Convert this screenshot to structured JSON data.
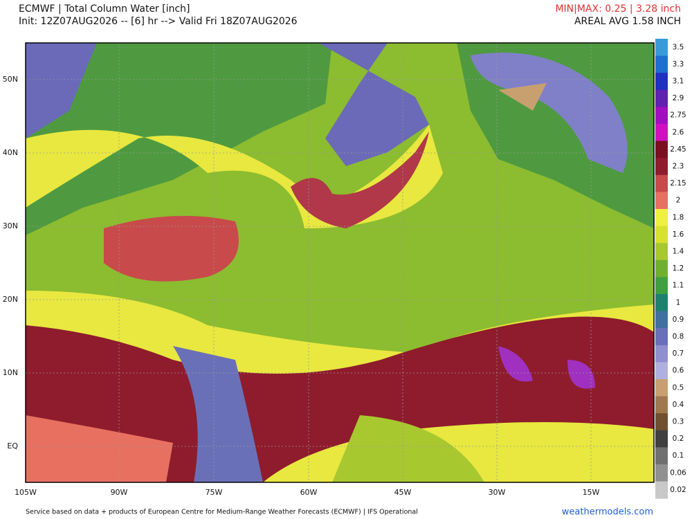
{
  "header": {
    "title": "ECMWF | Total Column Water [inch]",
    "init": "Init: 12Z07AUG2026 -- [6] hr --> Valid Fri 18Z07AUG2026",
    "minmax": "MIN|MAX: 0.25 | 3.28 inch",
    "areal_avg": "AREAL AVG 1.58 INCH"
  },
  "map": {
    "lat_labels": [
      "50N",
      "40N",
      "30N",
      "20N",
      "10N",
      "EQ"
    ],
    "lon_labels": [
      "105W",
      "90W",
      "75W",
      "60W",
      "45W",
      "30W",
      "15W"
    ]
  },
  "colorbar": {
    "labels": [
      "3.5",
      "3.3",
      "3.1",
      "2.9",
      "2.75",
      "2.6",
      "2.45",
      "2.3",
      "2.15",
      "2",
      "1.8",
      "1.6",
      "1.4",
      "1.2",
      "1.1",
      "1",
      "0.9",
      "0.8",
      "0.7",
      "0.6",
      "0.5",
      "0.4",
      "0.3",
      "0.2",
      "0.1",
      "0.06",
      "0.02"
    ],
    "colors": [
      "#3a9ad9",
      "#1f6fd0",
      "#2030c0",
      "#6020b0",
      "#a010c0",
      "#d010c0",
      "#7a0f20",
      "#8e1c2c",
      "#c84a4a",
      "#e87060",
      "#f0f040",
      "#d8e030",
      "#a8c830",
      "#70b030",
      "#40a040",
      "#208070",
      "#4070a0",
      "#6a70b8",
      "#9090d0",
      "#b0b0e0",
      "#c8a070",
      "#a07850",
      "#705030",
      "#404040",
      "#707070",
      "#909090",
      "#c8c8c8"
    ]
  },
  "footer": {
    "credit": "Service based on data + products of European Centre for Medium-Range Weather Forecasts (ECMWF) | IFS Operational",
    "site": "weathermodels.com"
  }
}
